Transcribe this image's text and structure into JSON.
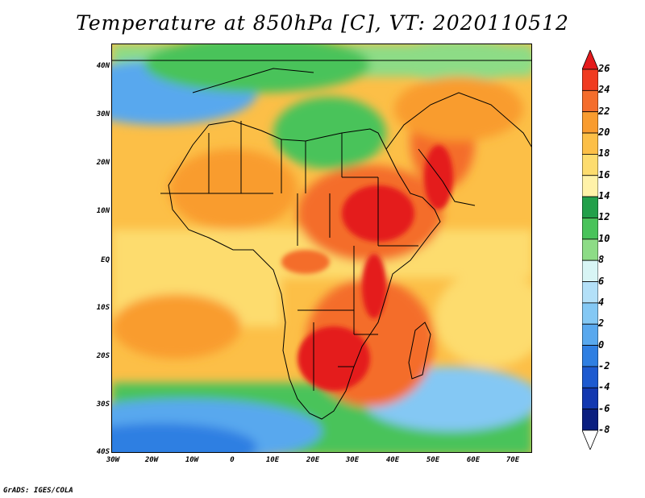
{
  "title": "Temperature at 850hPa [C], VT: 2020110512",
  "credit": "GrADS: IGES/COLA",
  "lat_ticks": [
    "40N",
    "30N",
    "20N",
    "10N",
    "EQ",
    "10S",
    "20S",
    "30S",
    "40S"
  ],
  "lon_ticks": [
    "30W",
    "20W",
    "10W",
    "0",
    "10E",
    "20E",
    "30E",
    "40E",
    "50E",
    "60E",
    "70E"
  ],
  "colorbar": {
    "labels": [
      "26",
      "24",
      "22",
      "20",
      "18",
      "16",
      "14",
      "12",
      "10",
      "8",
      "6",
      "4",
      "2",
      "0",
      "-2",
      "-4",
      "-6",
      "-8"
    ],
    "colors": [
      "#e41a1c",
      "#f03b20",
      "#f46d2c",
      "#f99c2f",
      "#fcbf47",
      "#fddc6e",
      "#fff2a8",
      "#22a04a",
      "#49c35a",
      "#8ddc86",
      "#d8f5f5",
      "#b3e0f8",
      "#84c8f4",
      "#58a8ee",
      "#2f7fe2",
      "#1d5ad0",
      "#1238b0",
      "#0b1f80",
      "#ffffff"
    ]
  }
}
